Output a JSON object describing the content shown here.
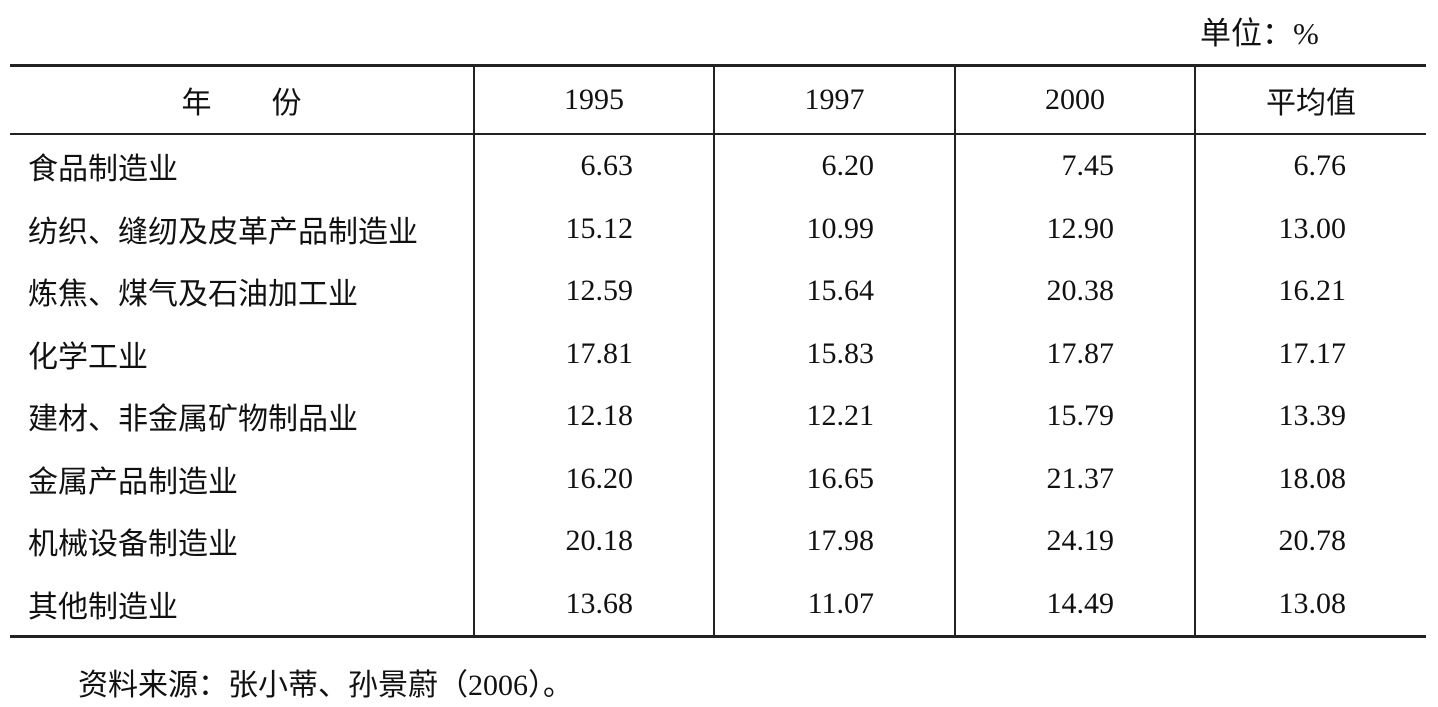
{
  "unit": "单位：%",
  "table": {
    "header": [
      "年　　份",
      "1995",
      "1997",
      "2000",
      "平均值"
    ],
    "rows": [
      [
        "食品制造业",
        "6.63",
        "6.20",
        "7.45",
        "6.76"
      ],
      [
        "纺织、缝纫及皮革产品制造业",
        "15.12",
        "10.99",
        "12.90",
        "13.00"
      ],
      [
        "炼焦、煤气及石油加工业",
        "12.59",
        "15.64",
        "20.38",
        "16.21"
      ],
      [
        "化学工业",
        "17.81",
        "15.83",
        "17.87",
        "17.17"
      ],
      [
        "建材、非金属矿物制品业",
        "12.18",
        "12.21",
        "15.79",
        "13.39"
      ],
      [
        "金属产品制造业",
        "16.20",
        "16.65",
        "21.37",
        "18.08"
      ],
      [
        "机械设备制造业",
        "20.18",
        "17.98",
        "24.19",
        "20.78"
      ],
      [
        "其他制造业",
        "13.68",
        "11.07",
        "14.49",
        "13.08"
      ]
    ]
  },
  "source": "资料来源：张小蒂、孙景蔚（2006）。"
}
